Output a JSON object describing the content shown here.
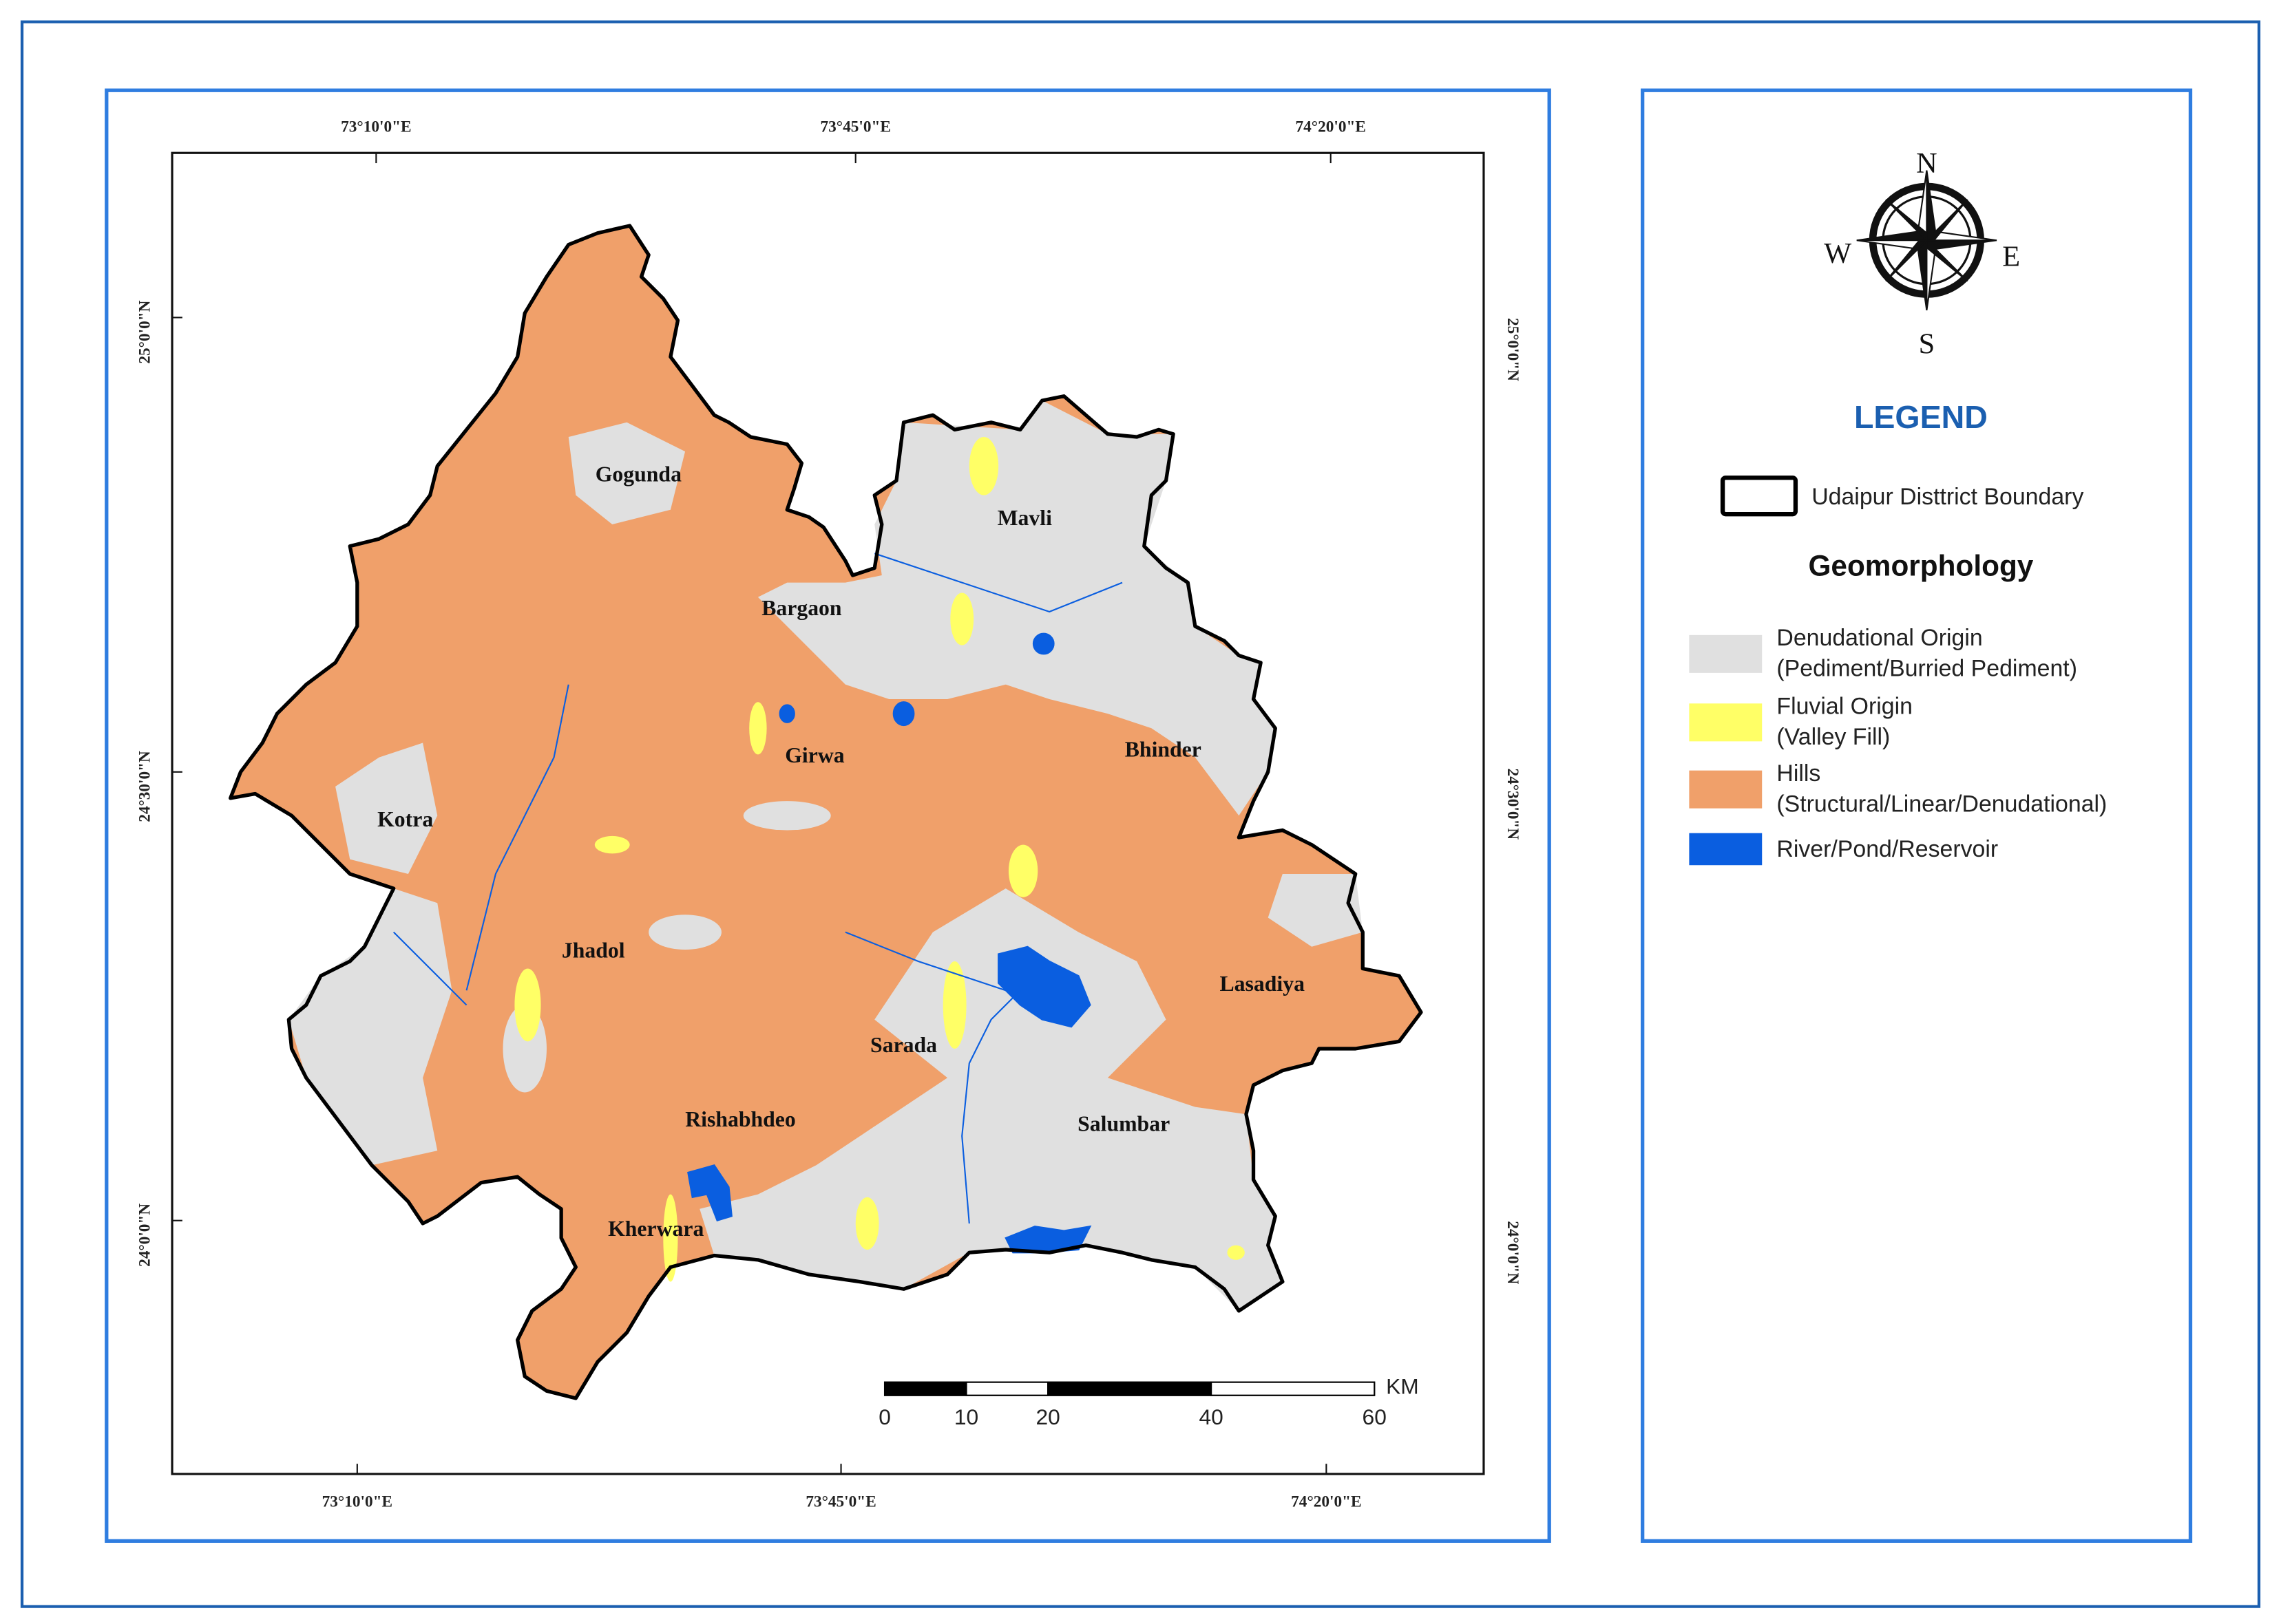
{
  "grid_labels": {
    "top": [
      "73°10'0\"E",
      "73°45'0\"E",
      "74°20'0\"E"
    ],
    "bottom": [
      "73°10'0\"E",
      "73°45'0\"E",
      "74°20'0\"E"
    ],
    "left": [
      "25°0'0\"N",
      "24°30'0\"N",
      "24°0'0\"N"
    ],
    "right": [
      "25°0'0\"N",
      "24°30'0\"N",
      "24°0'0\"N"
    ]
  },
  "places": [
    "Gogunda",
    "Mavli",
    "Bargaon",
    "Girwa",
    "Bhinder",
    "Kotra",
    "Jhadol",
    "Lasadiya",
    "Sarada",
    "Rishabhdeo",
    "Salumbar",
    "Kherwara"
  ],
  "compass": {
    "n": "N",
    "e": "E",
    "s": "S",
    "w": "W"
  },
  "legend": {
    "title": "LEGEND",
    "boundary": "Udaipur Disttrict Boundary",
    "subtitle": "Geomorphology",
    "items": [
      {
        "color": "#e0e0e0",
        "lines": [
          "Denudational Origin",
          "(Pediment/Burried Pediment)"
        ]
      },
      {
        "color": "#ffff66",
        "lines": [
          "Fluvial Origin",
          "(Valley Fill)"
        ]
      },
      {
        "color": "#f0a06a",
        "lines": [
          "Hills",
          "(Structural/Linear/Denudational)"
        ]
      },
      {
        "color": "#0a5ee0",
        "lines": [
          "River/Pond/Reservoir"
        ]
      }
    ]
  },
  "scale_bar": {
    "ticks": [
      0,
      10,
      20,
      40,
      60
    ],
    "unit": "KM"
  }
}
